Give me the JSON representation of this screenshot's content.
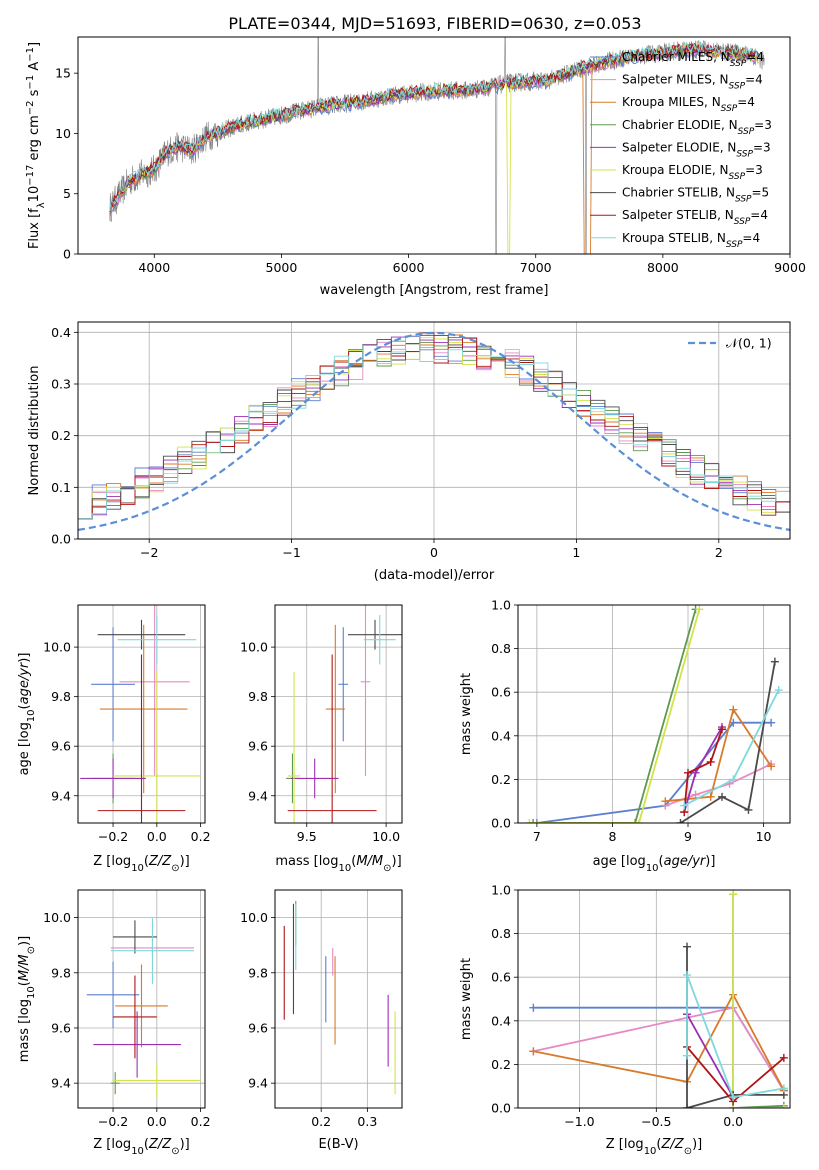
{
  "figure_title": "PLATE=0344, MJD=51693, FIBERID=0630, z=0.053",
  "models": [
    {
      "name": "Chabrier MILES",
      "nssp": "4",
      "color": "#5b7fd1"
    },
    {
      "name": "Salpeter MILES",
      "nssp": "4",
      "color": "#e78ac3"
    },
    {
      "name": "Kroupa MILES",
      "nssp": "4",
      "color": "#d87a2a"
    },
    {
      "name": "Chabrier ELODIE",
      "nssp": "3",
      "color": "#5e9a4e"
    },
    {
      "name": "Salpeter ELODIE",
      "nssp": "3",
      "color": "#9b2fb3"
    },
    {
      "name": "Kroupa ELODIE",
      "nssp": "3",
      "color": "#d4e24a"
    },
    {
      "name": "Chabrier STELIB",
      "nssp": "5",
      "color": "#4a4a4a"
    },
    {
      "name": "Salpeter STELIB",
      "nssp": "4",
      "color": "#b01515"
    },
    {
      "name": "Kroupa STELIB",
      "nssp": "4",
      "color": "#7ed8dc"
    }
  ],
  "legend_nssp_prefix": "N",
  "legend_nssp_sub": "SSP",
  "chart_data": [
    {
      "id": "spectrum",
      "type": "line",
      "xlabel": "wavelength [Angstrom, rest frame]",
      "ylabel": "Flux [f",
      "ylabel_parts": [
        "Flux [f",
        "λ",
        "10",
        "−17",
        " erg cm",
        "−2",
        " s",
        "−1",
        " A",
        "−1",
        "]"
      ],
      "xlim": [
        3400,
        9000
      ],
      "ylim": [
        0,
        18
      ],
      "xticks": [
        "4000",
        "5000",
        "6000",
        "7000",
        "8000",
        "9000"
      ],
      "yticks": [
        "0",
        "5",
        "10",
        "15"
      ],
      "data_color": "#808080",
      "continuum": {
        "x": [
          3650,
          3700,
          3800,
          3900,
          4000,
          4100,
          4200,
          4300,
          4400,
          4500,
          4700,
          5000,
          5300,
          5600,
          5900,
          6200,
          6500,
          6800,
          7100,
          7400,
          7700,
          8000,
          8300,
          8700,
          8800
        ],
        "y": [
          3.8,
          4.5,
          6.0,
          6.6,
          7.0,
          8.5,
          8.9,
          8.6,
          9.7,
          10.1,
          10.8,
          11.5,
          12.2,
          12.6,
          13.2,
          13.5,
          13.6,
          14.2,
          14.4,
          15.5,
          16.3,
          16.7,
          17.0,
          16.5,
          16.0
        ]
      }
    },
    {
      "id": "residuals",
      "type": "histogram",
      "xlabel": "(data-model)/error",
      "ylabel": "Normed distribution",
      "xlim": [
        -2.5,
        2.5
      ],
      "ylim": [
        0,
        0.42
      ],
      "xticks": [
        "−2",
        "−1",
        "0",
        "1",
        "2"
      ],
      "yticks": [
        "0.0",
        "0.1",
        "0.2",
        "0.3",
        "0.4"
      ],
      "gaussian_label": "𝒩(0, 1)",
      "gaussian_color": "#5b8fd6",
      "bins": [
        -2.5,
        2.5,
        50
      ]
    },
    {
      "id": "age_vs_Z",
      "type": "scatter",
      "xlabel": "Z [log10(Z/Z⊙)]",
      "ylabel": "age  [log10(age/yr)]",
      "xlim": [
        -0.36,
        0.22
      ],
      "ylim": [
        9.29,
        10.17
      ],
      "xticks": [
        "−0.2",
        "0.0",
        "0.2"
      ],
      "yticks": [
        "9.4",
        "9.6",
        "9.8",
        "10.0"
      ],
      "points": [
        {
          "x": -0.2,
          "y": 9.85,
          "xerr": 0.1,
          "yerr": 0.23
        },
        {
          "x": -0.01,
          "y": 9.86,
          "xerr": 0.16,
          "yerr": 0.38
        },
        {
          "x": -0.06,
          "y": 9.75,
          "xerr": 0.2,
          "yerr": 0.34
        },
        {
          "x": -0.2,
          "y": 9.47,
          "xerr": 0.1,
          "yerr": 0.1
        },
        {
          "x": -0.2,
          "y": 9.47,
          "xerr": 0.15,
          "yerr": 0.08
        },
        {
          "x": 0.0,
          "y": 9.48,
          "xerr": 0.2,
          "yerr": 0.42
        },
        {
          "x": -0.07,
          "y": 10.05,
          "xerr": 0.2,
          "yerr": 0.06
        },
        {
          "x": -0.07,
          "y": 9.34,
          "xerr": 0.2,
          "yerr": 0.63
        },
        {
          "x": 0.0,
          "y": 10.03,
          "xerr": 0.18,
          "yerr": 0.1
        }
      ]
    },
    {
      "id": "age_vs_mass",
      "type": "scatter",
      "xlabel": "mass [log10(M/M⊙)]",
      "ylabel": "",
      "xlim": [
        9.3,
        10.1
      ],
      "ylim": [
        9.29,
        10.17
      ],
      "xticks": [
        "9.5",
        "10.0"
      ],
      "yticks": [
        "9.4",
        "9.6",
        "9.8",
        "10.0"
      ],
      "points": [
        {
          "x": 9.73,
          "y": 9.85,
          "xerr": 0.03,
          "yerr": 0.23
        },
        {
          "x": 9.87,
          "y": 9.86,
          "xerr": 0.03,
          "yerr": 0.38
        },
        {
          "x": 9.68,
          "y": 9.75,
          "xerr": 0.06,
          "yerr": 0.34
        },
        {
          "x": 9.41,
          "y": 9.47,
          "xerr": 0.04,
          "yerr": 0.1
        },
        {
          "x": 9.55,
          "y": 9.47,
          "xerr": 0.15,
          "yerr": 0.08
        },
        {
          "x": 9.42,
          "y": 9.48,
          "xerr": 0.04,
          "yerr": 0.42
        },
        {
          "x": 9.93,
          "y": 10.05,
          "xerr": 0.17,
          "yerr": 0.06
        },
        {
          "x": 9.66,
          "y": 9.34,
          "xerr": 0.28,
          "yerr": 0.63
        },
        {
          "x": 9.96,
          "y": 10.03,
          "xerr": 0.1,
          "yerr": 0.1
        }
      ]
    },
    {
      "id": "mass_weight_vs_age",
      "type": "line",
      "xlabel": "age  [log10(age/yr)]",
      "ylabel": "mass weight",
      "xlim": [
        6.75,
        10.35
      ],
      "ylim": [
        0,
        1
      ],
      "xticks": [
        "7",
        "8",
        "9",
        "10"
      ],
      "yticks": [
        "0.0",
        "0.2",
        "0.4",
        "0.6",
        "0.8",
        "1.0"
      ],
      "series": [
        {
          "x": [
            7.0,
            8.7,
            9.6,
            10.1
          ],
          "y": [
            0.0,
            0.08,
            0.46,
            0.46
          ]
        },
        {
          "x": [
            8.7,
            9.1,
            9.55,
            10.1
          ],
          "y": [
            0.08,
            0.13,
            0.18,
            0.27
          ]
        },
        {
          "x": [
            8.7,
            9.3,
            9.6,
            10.1
          ],
          "y": [
            0.1,
            0.12,
            0.52,
            0.26
          ]
        },
        {
          "x": [
            6.95,
            8.3,
            9.1
          ],
          "y": [
            0.0,
            0.0,
            0.98
          ]
        },
        {
          "x": [
            8.95,
            9.1,
            9.45
          ],
          "y": [
            0.05,
            0.23,
            0.44
          ]
        },
        {
          "x": [
            6.9,
            8.35,
            9.15
          ],
          "y": [
            0.0,
            0.0,
            0.98
          ]
        },
        {
          "x": [
            8.9,
            9.45,
            9.8,
            10.15
          ],
          "y": [
            0.0,
            0.12,
            0.06,
            0.74
          ]
        },
        {
          "x": [
            8.95,
            9.0,
            9.3,
            9.45
          ],
          "y": [
            0.05,
            0.23,
            0.28,
            0.43
          ]
        },
        {
          "x": [
            8.95,
            9.6,
            10.2
          ],
          "y": [
            0.08,
            0.2,
            0.61
          ]
        }
      ]
    },
    {
      "id": "mass_vs_Z",
      "type": "scatter",
      "xlabel": "Z [log10(Z/Z⊙)]",
      "ylabel": "mass [log10(M/M⊙)]",
      "xlim": [
        -0.36,
        0.22
      ],
      "ylim": [
        9.31,
        10.1
      ],
      "xticks": [
        "−0.2",
        "0.0",
        "0.2"
      ],
      "yticks": [
        "9.4",
        "9.6",
        "9.8",
        "10.0"
      ],
      "points": [
        {
          "x": -0.2,
          "y": 9.72,
          "xerr": 0.12,
          "yerr": 0.12
        },
        {
          "x": -0.02,
          "y": 9.89,
          "xerr": 0.19,
          "yerr": 0.03
        },
        {
          "x": -0.07,
          "y": 9.68,
          "xerr": 0.12,
          "yerr": 0.15
        },
        {
          "x": -0.19,
          "y": 9.4,
          "xerr": 0.02,
          "yerr": 0.04
        },
        {
          "x": -0.09,
          "y": 9.54,
          "xerr": 0.2,
          "yerr": 0.12
        },
        {
          "x": 0.0,
          "y": 9.41,
          "xerr": 0.2,
          "yerr": 0.06
        },
        {
          "x": -0.1,
          "y": 9.93,
          "xerr": 0.1,
          "yerr": 0.06
        },
        {
          "x": -0.1,
          "y": 9.64,
          "xerr": 0.1,
          "yerr": 0.15
        },
        {
          "x": -0.02,
          "y": 9.88,
          "xerr": 0.19,
          "yerr": 0.12
        }
      ]
    },
    {
      "id": "mass_vs_ebv",
      "type": "scatter",
      "xlabel": "E(B-V)",
      "ylabel": "",
      "xlim": [
        0.1,
        0.375
      ],
      "ylim": [
        9.31,
        10.1
      ],
      "xticks": [
        "0.2",
        "0.3"
      ],
      "yticks": [
        "9.4",
        "9.6",
        "9.8",
        "10.0"
      ],
      "points": [
        {
          "x": 0.21,
          "y": 9.74,
          "xerr": 0.0,
          "yerr": 0.12
        },
        {
          "x": 0.225,
          "y": 9.84,
          "xerr": 0.0,
          "yerr": 0.05
        },
        {
          "x": 0.23,
          "y": 9.7,
          "xerr": 0.0,
          "yerr": 0.16
        },
        {
          "x": 0.145,
          "y": 9.98,
          "xerr": 0.0,
          "yerr": 0.08
        },
        {
          "x": 0.345,
          "y": 9.59,
          "xerr": 0.0,
          "yerr": 0.13
        },
        {
          "x": 0.36,
          "y": 9.51,
          "xerr": 0.0,
          "yerr": 0.15
        },
        {
          "x": 0.14,
          "y": 9.85,
          "xerr": 0.0,
          "yerr": 0.2
        },
        {
          "x": 0.12,
          "y": 9.8,
          "xerr": 0.0,
          "yerr": 0.17
        },
        {
          "x": 0.145,
          "y": 9.93,
          "xerr": 0.0,
          "yerr": 0.12
        }
      ]
    },
    {
      "id": "mass_weight_vs_Z",
      "type": "line",
      "xlabel": "Z [log10(Z/Z⊙)]",
      "ylabel": "mass weight",
      "xlim": [
        -1.4,
        0.37
      ],
      "ylim": [
        0,
        1
      ],
      "xticks": [
        "−1.0",
        "−0.5",
        "0.0"
      ],
      "yticks": [
        "0.0",
        "0.2",
        "0.4",
        "0.6",
        "0.8",
        "1.0"
      ],
      "series": [
        {
          "x": [
            -1.3,
            0.0,
            0.33
          ],
          "y": [
            0.46,
            0.46,
            0.08
          ]
        },
        {
          "x": [
            -1.3,
            0.0,
            0.33
          ],
          "y": [
            0.26,
            0.46,
            0.08
          ]
        },
        {
          "x": [
            -1.3,
            -0.3,
            0.0,
            0.33
          ],
          "y": [
            0.26,
            0.12,
            0.52,
            0.08
          ]
        },
        {
          "x": [
            0.0,
            0.0,
            0.33
          ],
          "y": [
            0.98,
            0.0,
            0.01
          ]
        },
        {
          "x": [
            -0.3,
            0.0
          ],
          "y": [
            0.43,
            0.05
          ]
        },
        {
          "x": [
            0.0,
            0.0,
            0.33
          ],
          "y": [
            0.98,
            0.0,
            0.0
          ]
        },
        {
          "x": [
            -0.3,
            -0.3,
            0.0,
            0.33
          ],
          "y": [
            0.74,
            0.0,
            0.06,
            0.06
          ]
        },
        {
          "x": [
            -0.3,
            0.0,
            0.33
          ],
          "y": [
            0.28,
            0.03,
            0.23
          ]
        },
        {
          "x": [
            -0.3,
            -0.3,
            0.0,
            0.33
          ],
          "y": [
            0.24,
            0.61,
            0.05,
            0.09
          ]
        }
      ]
    }
  ]
}
